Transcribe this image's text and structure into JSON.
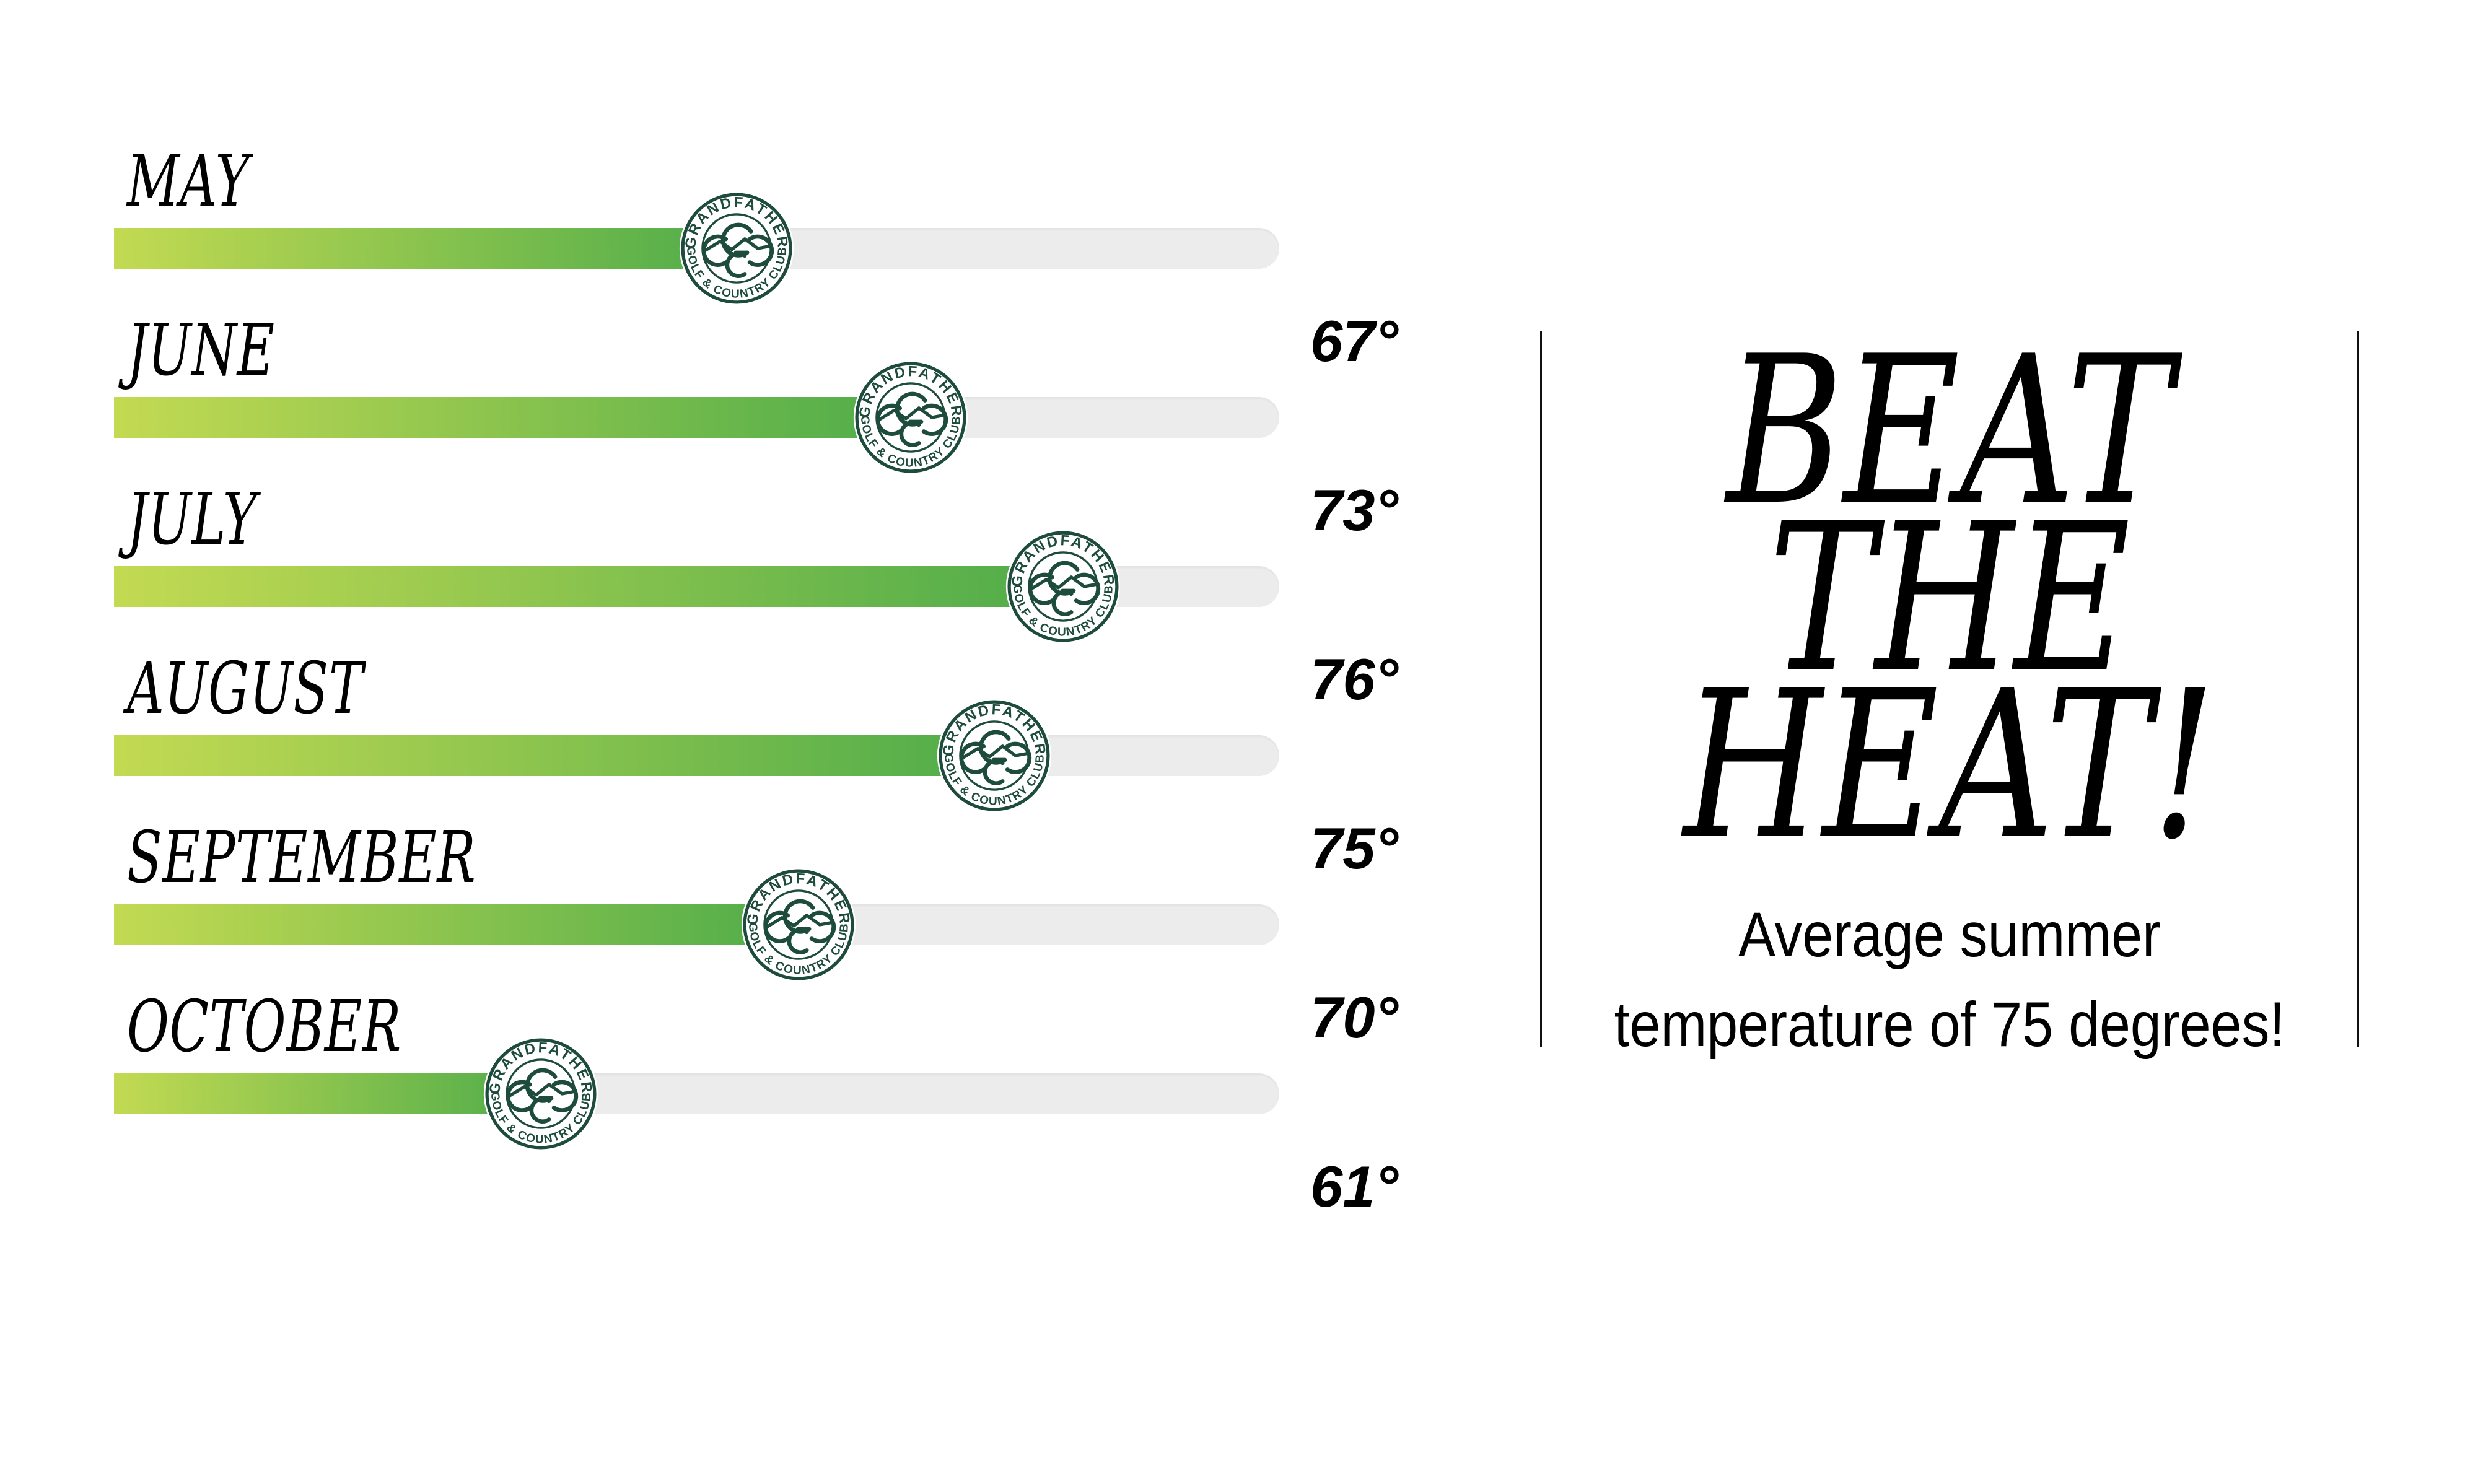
{
  "chart_data": {
    "type": "bar",
    "orientation": "horizontal",
    "categories": [
      "MAY",
      "JUNE",
      "JULY",
      "AUGUST",
      "SEPTEMBER",
      "OCTOBER"
    ],
    "values": [
      67,
      73,
      76,
      75,
      70,
      61
    ],
    "value_labels": [
      "67°",
      "73°",
      "76°",
      "75°",
      "70°",
      "61°"
    ],
    "unit": "degrees Fahrenheit",
    "title": "BEAT THE HEAT!",
    "subtitle": "Average summer temperature of 75 degrees!",
    "fill_pct": [
      58.5,
      73.4,
      86.5,
      80.6,
      63.8,
      41.7
    ],
    "legend": "none",
    "grid": "off",
    "marker": "Grandfather Golf & Country Club circular logo badge at end of each bar"
  },
  "rows": [
    {
      "month": "MAY",
      "temp_label": "67°",
      "value": 67,
      "fill_pct": 58.5
    },
    {
      "month": "JUNE",
      "temp_label": "73°",
      "value": 73,
      "fill_pct": 73.4
    },
    {
      "month": "JULY",
      "temp_label": "76°",
      "value": 76,
      "fill_pct": 86.5
    },
    {
      "month": "AUGUST",
      "temp_label": "75°",
      "value": 75,
      "fill_pct": 80.6
    },
    {
      "month": "SEPTEMBER",
      "temp_label": "70°",
      "value": 70,
      "fill_pct": 63.8
    },
    {
      "month": "OCTOBER",
      "temp_label": "61°",
      "value": 61,
      "fill_pct": 41.7
    }
  ],
  "badge": {
    "top_text": "GRANDFATHER",
    "bottom_text": "GOLF & COUNTRY CLUB",
    "color": "#1d4b3c"
  },
  "panel": {
    "title_lines": [
      "BEAT",
      "THE",
      "HEAT!"
    ],
    "caption_lines": [
      "Average summer",
      "temperature of 75 degrees!"
    ]
  },
  "colors": {
    "bar_fill_start": "#c3da52",
    "bar_fill_end": "#4fac4a",
    "track": "#ececec",
    "badge_green": "#1d4b3c",
    "text": "#000000",
    "divider_line": "#111111",
    "background": "#ffffff"
  }
}
